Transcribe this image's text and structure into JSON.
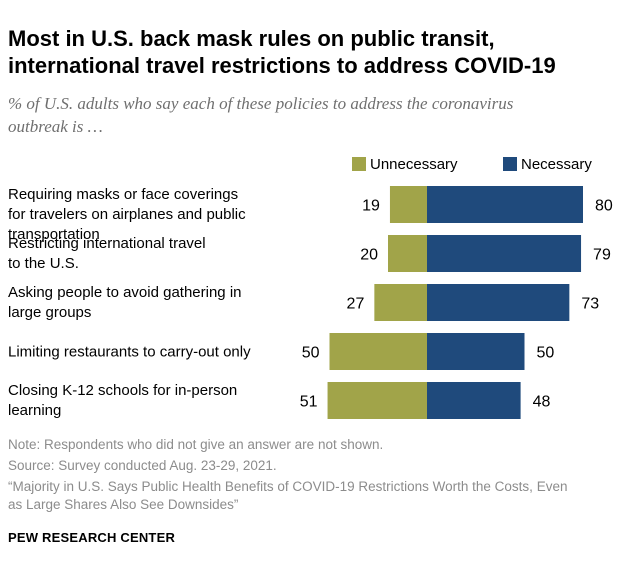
{
  "header": {
    "title_line1": "Most in U.S. back mask rules on public transit,",
    "title_line2": "international travel restrictions to address COVID-19",
    "subtitle_line1": "% of U.S. adults who say each of these policies to address the coronavirus",
    "subtitle_line2": "outbreak is …"
  },
  "chart_data": {
    "type": "bar",
    "orientation": "horizontal-diverging",
    "legend_position": "top",
    "categories": [
      [
        "Requiring masks or face coverings",
        "for travelers on airplanes and public",
        "transportation"
      ],
      [
        "Restricting international travel",
        "to the U.S."
      ],
      [
        "Asking people to avoid gathering in",
        "large groups"
      ],
      [
        "Limiting restaurants to carry-out only"
      ],
      [
        "Closing K-12 schools for in-person",
        "learning"
      ]
    ],
    "series": [
      {
        "name": "Unnecessary",
        "color": "#a1a449",
        "values": [
          19,
          20,
          27,
          50,
          51
        ]
      },
      {
        "name": "Necessary",
        "color": "#1f4a7c",
        "values": [
          80,
          79,
          73,
          50,
          48
        ]
      }
    ]
  },
  "footer": {
    "note": "Note: Respondents who did not give an answer are not shown.",
    "source": "Source: Survey conducted Aug. 23-29, 2021.",
    "report_line1": "“Majority in U.S. Says Public Health Benefits of COVID-19 Restrictions Worth the Costs, Even",
    "report_line2": "as Large Shares Also See Downsides”",
    "brand": "PEW RESEARCH CENTER"
  }
}
